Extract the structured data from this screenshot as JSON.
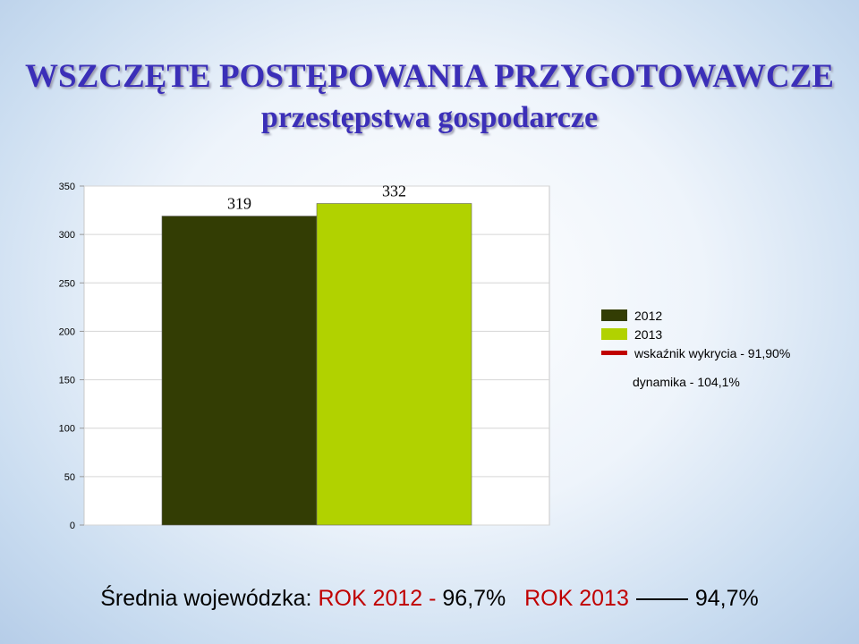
{
  "title": "WSZCZĘTE POSTĘPOWANIA PRZYGOTOWAWCZE",
  "subtitle": "przestępstwa gospodarcze",
  "chart_data": {
    "type": "bar",
    "series": [
      {
        "name": "2012",
        "value": 319,
        "label": "319",
        "color": "#333d04"
      },
      {
        "name": "2013",
        "value": 332,
        "label": "332",
        "color": "#b1d200"
      }
    ],
    "ylim": [
      0,
      350
    ],
    "yticks": [
      0,
      50,
      100,
      150,
      200,
      250,
      300,
      350
    ],
    "grid": true,
    "legend_position": "right",
    "indicator": {
      "name": "wskaźnik wykrycia - 91,90%",
      "color": "#c00000"
    },
    "annotation": "dynamika - 104,1%"
  },
  "footer": {
    "prefix": "Średnia wojewódzka: ",
    "rok2012_label": "ROK 2012 - ",
    "rok2012_value": "96,7%",
    "rok2013_label": "ROK 2013",
    "rok2013_value": "94,7%"
  }
}
